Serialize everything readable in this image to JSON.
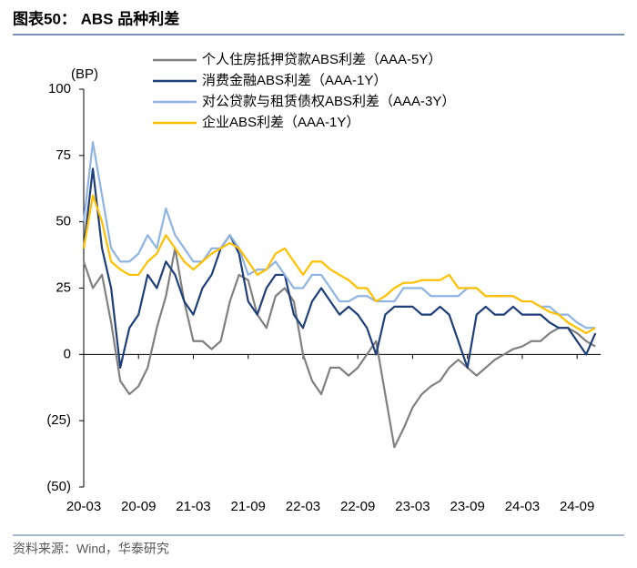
{
  "header": {
    "title": "图表50：  ABS 品种利差"
  },
  "source": "资料来源：Wind，华泰研究",
  "chart_data": {
    "type": "line",
    "y_label": "(BP)",
    "categories": [
      "20-03",
      null,
      null,
      null,
      null,
      null,
      "20-09",
      null,
      null,
      null,
      null,
      null,
      "21-03",
      null,
      null,
      null,
      null,
      null,
      "21-09",
      null,
      null,
      null,
      null,
      null,
      "22-03",
      null,
      null,
      null,
      null,
      null,
      "22-09",
      null,
      null,
      null,
      null,
      null,
      "23-03",
      null,
      null,
      null,
      null,
      null,
      "23-09",
      null,
      null,
      null,
      null,
      null,
      "24-03",
      null,
      null,
      null,
      null,
      null,
      "24-09",
      null,
      null
    ],
    "series": [
      {
        "name": "个人住房抵押贷款ABS利差（AAA-5Y）",
        "color": "#808080",
        "values": [
          35,
          25,
          30,
          12,
          -10,
          -15,
          -12,
          -5,
          10,
          22,
          40,
          20,
          5,
          5,
          2,
          5,
          20,
          30,
          28,
          15,
          10,
          22,
          25,
          20,
          0,
          -10,
          -15,
          -5,
          -5,
          -8,
          -5,
          0,
          5,
          -15,
          -35,
          -28,
          -20,
          -15,
          -12,
          -10,
          -5,
          -2,
          -5,
          -8,
          -5,
          -2,
          0,
          2,
          3,
          5,
          5,
          8,
          10,
          10,
          8,
          5,
          3
        ]
      },
      {
        "name": "消费金融ABS利差（AAA-1Y）",
        "color": "#1f3f7a",
        "values": [
          40,
          70,
          40,
          25,
          -5,
          10,
          15,
          30,
          25,
          35,
          30,
          20,
          15,
          25,
          30,
          40,
          45,
          38,
          20,
          15,
          25,
          30,
          30,
          15,
          10,
          20,
          25,
          20,
          15,
          18,
          15,
          10,
          0,
          15,
          18,
          18,
          18,
          15,
          15,
          18,
          15,
          5,
          -5,
          15,
          18,
          15,
          15,
          18,
          15,
          15,
          15,
          12,
          10,
          10,
          5,
          0,
          8
        ]
      },
      {
        "name": "对公贷款与租赁债权ABS利差（AAA-3Y）",
        "color": "#8fb4e3",
        "values": [
          50,
          80,
          60,
          40,
          35,
          35,
          38,
          45,
          40,
          55,
          45,
          40,
          35,
          35,
          40,
          40,
          45,
          40,
          30,
          32,
          32,
          35,
          30,
          25,
          25,
          30,
          30,
          25,
          20,
          20,
          22,
          22,
          20,
          20,
          20,
          25,
          25,
          25,
          22,
          22,
          22,
          22,
          25,
          25,
          22,
          22,
          22,
          22,
          20,
          20,
          18,
          18,
          15,
          15,
          12,
          10,
          10
        ]
      },
      {
        "name": "企业ABS利差（AAA-1Y）",
        "color": "#ffc000",
        "values": [
          40,
          60,
          50,
          35,
          32,
          30,
          30,
          35,
          38,
          45,
          40,
          35,
          32,
          35,
          38,
          40,
          42,
          40,
          35,
          30,
          32,
          38,
          40,
          35,
          30,
          35,
          35,
          32,
          30,
          28,
          25,
          25,
          20,
          22,
          25,
          27,
          27,
          28,
          28,
          28,
          30,
          25,
          25,
          25,
          22,
          22,
          22,
          22,
          20,
          20,
          18,
          16,
          15,
          12,
          10,
          8,
          10
        ]
      }
    ],
    "ylim": [
      -50,
      100
    ],
    "yticks": [
      {
        "value": -50,
        "label": "(50)"
      },
      {
        "value": -25,
        "label": "(25)"
      },
      0,
      25,
      50,
      75,
      100
    ]
  }
}
